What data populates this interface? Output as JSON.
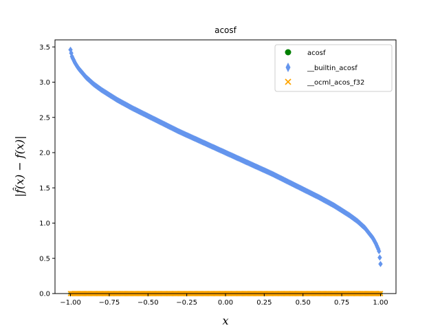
{
  "chart_data": {
    "type": "scatter",
    "title": "acosf",
    "xlabel": "x",
    "ylabel": "|f̂(x) − f(x)|",
    "xlim": [
      -1.1,
      1.1
    ],
    "ylim": [
      0.0,
      3.6
    ],
    "x_ticks": [
      "−1.00",
      "−0.75",
      "−0.50",
      "−0.25",
      "0.00",
      "0.25",
      "0.50",
      "0.75",
      "1.00"
    ],
    "y_ticks": [
      "0.0",
      "0.5",
      "1.0",
      "1.5",
      "2.0",
      "2.5",
      "3.0",
      "3.5"
    ],
    "x_tick_values": [
      -1.0,
      -0.75,
      -0.5,
      -0.25,
      0.0,
      0.25,
      0.5,
      0.75,
      1.0
    ],
    "y_tick_values": [
      0.0,
      0.5,
      1.0,
      1.5,
      2.0,
      2.5,
      3.0,
      3.5
    ],
    "legend_position": "top-right",
    "series": [
      {
        "name": "acosf",
        "marker": "circle",
        "color": "#008000",
        "x": [
          -1.0,
          -0.5,
          0.0,
          0.5,
          1.0
        ],
        "y": [
          0.0,
          0.0,
          0.0,
          0.0,
          0.0
        ]
      },
      {
        "name": "__builtin_acosf",
        "marker": "thin-diamond",
        "color": "#6495ed",
        "x": [
          -1.0,
          -0.99,
          -0.97,
          -0.95,
          -0.9,
          -0.85,
          -0.8,
          -0.7,
          -0.6,
          -0.5,
          -0.4,
          -0.3,
          -0.2,
          -0.1,
          0.0,
          0.1,
          0.2,
          0.3,
          0.4,
          0.5,
          0.6,
          0.7,
          0.8,
          0.85,
          0.9,
          0.95,
          0.97,
          0.99,
          1.0
        ],
        "y": [
          3.46,
          3.36,
          3.27,
          3.2,
          3.07,
          2.97,
          2.89,
          2.75,
          2.63,
          2.52,
          2.41,
          2.3,
          2.2,
          2.1,
          2.0,
          1.9,
          1.8,
          1.7,
          1.59,
          1.48,
          1.37,
          1.25,
          1.11,
          1.03,
          0.93,
          0.79,
          0.71,
          0.61,
          0.42
        ]
      },
      {
        "name": "__ocml_acos_f32",
        "marker": "x",
        "color": "#ffa500",
        "x": [
          -1.0,
          -0.5,
          0.0,
          0.5,
          1.0
        ],
        "y": [
          0.0,
          0.0,
          0.0,
          0.0,
          0.0
        ]
      }
    ]
  }
}
